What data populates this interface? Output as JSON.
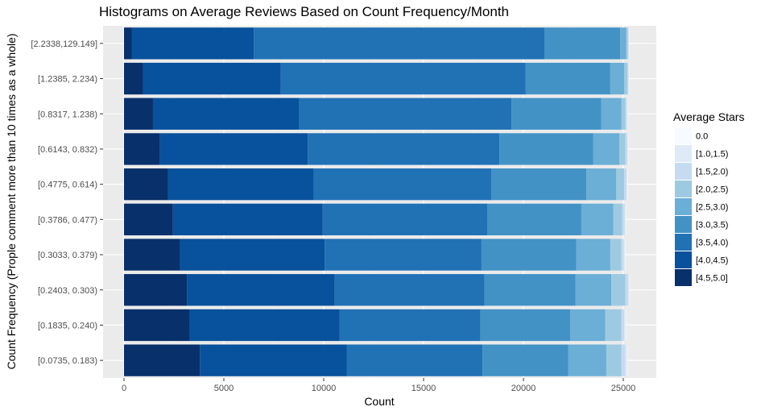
{
  "chart_data": {
    "type": "bar",
    "orientation": "horizontal",
    "stacked": true,
    "title": "Histograms on Average Reviews Based on Count Frequency/Month",
    "xlabel": "Count",
    "ylabel": "Count Frequency (Prople comment more than 10 times as a whole)",
    "xlim": [
      0,
      26500
    ],
    "xticks": [
      0,
      5000,
      10000,
      15000,
      20000,
      25000
    ],
    "xtick_labels": [
      "0",
      "5000",
      "10000",
      "15000",
      "20000",
      "25000"
    ],
    "grid": true,
    "legend_position": "right",
    "legend_title": "Average Stars",
    "categories": [
      "[0.0735,  0.183)",
      "[0.1835, 0.240)",
      "[0.2403,  0.303)",
      "[0.3033,  0.379)",
      "[0.3786,  0.477)",
      "[0.4775,  0.614)",
      "[0.6143,  0.832)",
      "[0.8317,  1.238)",
      "[1.2385,  2.234)",
      "[2.2338,129.149]"
    ],
    "series": [
      {
        "name": "[4.5,5.0]",
        "color": "#08306b",
        "values": [
          3800,
          3300,
          3150,
          2800,
          2450,
          2200,
          1800,
          1450,
          950,
          400
        ]
      },
      {
        "name": "[4.0,4.5)",
        "color": "#08519c",
        "values": [
          7350,
          7500,
          7400,
          7250,
          7500,
          7300,
          7400,
          7300,
          6900,
          6100
        ]
      },
      {
        "name": "[3.5,4.0)",
        "color": "#2171b5",
        "values": [
          6800,
          7050,
          7500,
          7850,
          8250,
          8900,
          9600,
          10650,
          12250,
          14550
        ]
      },
      {
        "name": "[3.0,3.5)",
        "color": "#4292c6",
        "values": [
          4300,
          4500,
          4550,
          4750,
          4700,
          4750,
          4700,
          4500,
          4250,
          3800
        ]
      },
      {
        "name": "[2.5,3.0)",
        "color": "#6baed6",
        "values": [
          1900,
          1750,
          1800,
          1700,
          1600,
          1500,
          1300,
          1000,
          700,
          300
        ]
      },
      {
        "name": "[2.0,2.5)",
        "color": "#9ecae1",
        "values": [
          750,
          800,
          700,
          550,
          450,
          400,
          300,
          200,
          150,
          80
        ]
      },
      {
        "name": "[1.5,2.0)",
        "color": "#c6dbef",
        "values": [
          200,
          150,
          150,
          130,
          120,
          110,
          100,
          80,
          60,
          40
        ]
      },
      {
        "name": "[1.0,1.5)",
        "color": "#deebf7",
        "values": [
          100,
          80,
          70,
          60,
          50,
          50,
          40,
          40,
          30,
          20
        ]
      },
      {
        "name": "0.0",
        "color": "#f7fbff",
        "values": [
          20,
          20,
          20,
          20,
          20,
          20,
          20,
          20,
          20,
          20
        ]
      }
    ],
    "legend_order": [
      "0.0",
      "[1.0,1.5)",
      "[1.5,2.0)",
      "[2.0,2.5)",
      "[2.5,3.0)",
      "[3.0,3.5)",
      "[3.5,4.0)",
      "[4.0,4.5)",
      "[4.5,5.0]"
    ]
  }
}
